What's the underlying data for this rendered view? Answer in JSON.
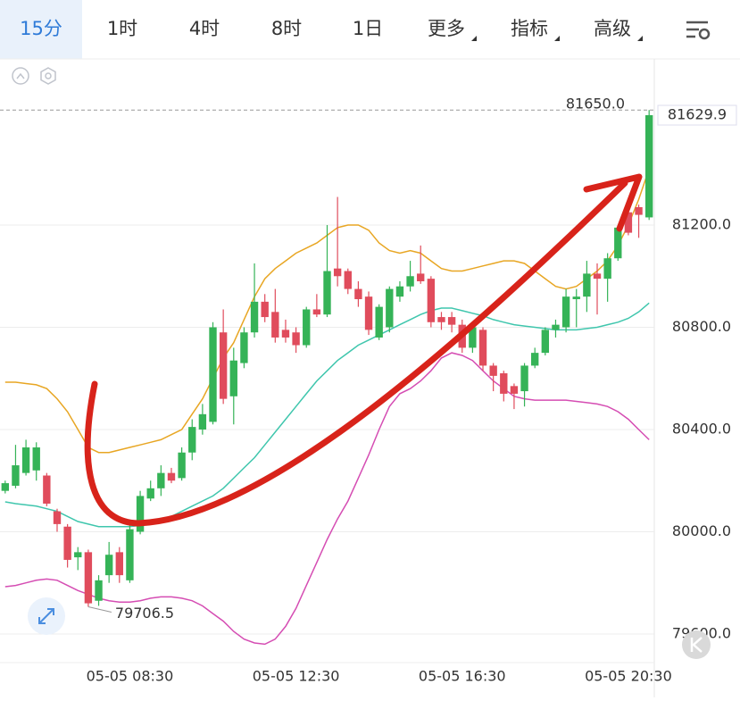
{
  "tabs": [
    "15分",
    "1时",
    "4时",
    "8时",
    "1日",
    "更多",
    "指标",
    "高级"
  ],
  "chart_data": {
    "type": "candlestick",
    "categories": [
      null,
      null,
      null,
      null,
      null,
      null,
      null,
      null,
      null,
      null,
      null,
      null,
      "05-05 08:30",
      null,
      null,
      null,
      null,
      null,
      null,
      null,
      null,
      null,
      null,
      null,
      null,
      null,
      null,
      null,
      "05-05 12:30",
      null,
      null,
      null,
      null,
      null,
      null,
      null,
      null,
      null,
      null,
      null,
      null,
      null,
      null,
      null,
      "05-05 16:30",
      null,
      null,
      null,
      null,
      null,
      null,
      null,
      null,
      null,
      null,
      null,
      null,
      null,
      null,
      null,
      "05-05 20:30",
      null,
      null
    ],
    "open": [
      80160,
      80180,
      80230,
      80240,
      80220,
      80080,
      80020,
      79900,
      79920,
      79730,
      79830,
      79920,
      79810,
      80000,
      80130,
      80170,
      80230,
      80210,
      80310,
      80400,
      80430,
      80780,
      80530,
      80660,
      80780,
      80900,
      80860,
      80790,
      80780,
      80730,
      80870,
      80850,
      81030,
      81020,
      80950,
      80920,
      80760,
      80800,
      80920,
      80960,
      81010,
      80990,
      80840,
      80840,
      80810,
      80720,
      80790,
      80650,
      80620,
      80570,
      80550,
      80650,
      80700,
      80790,
      80800,
      80910,
      80920,
      81010,
      80990,
      81070,
      81250,
      81270,
      81230
    ],
    "high": [
      80200,
      80340,
      80360,
      80350,
      80230,
      80090,
      80030,
      79940,
      79930,
      79830,
      79960,
      79940,
      80030,
      80160,
      80200,
      80260,
      80250,
      80330,
      80440,
      80500,
      80820,
      80870,
      80720,
      80800,
      81050,
      80930,
      80950,
      80830,
      80800,
      80880,
      80930,
      81200,
      81310,
      81030,
      80980,
      80940,
      80890,
      80960,
      80980,
      81060,
      81120,
      81000,
      80860,
      80860,
      80830,
      80810,
      80800,
      80660,
      80630,
      80580,
      80660,
      80720,
      80800,
      80830,
      80950,
      80950,
      81060,
      81050,
      81090,
      81200,
      81260,
      81280,
      81650
    ],
    "low": [
      80150,
      80170,
      80220,
      80200,
      80100,
      80000,
      79860,
      79850,
      79706.5,
      79710,
      79800,
      79800,
      79800,
      79990,
      80120,
      80140,
      80190,
      80200,
      80280,
      80380,
      80420,
      80500,
      80420,
      80640,
      80760,
      80820,
      80740,
      80740,
      80700,
      80720,
      80840,
      80840,
      80960,
      80930,
      80880,
      80770,
      80750,
      80780,
      80900,
      80940,
      80970,
      80800,
      80790,
      80780,
      80700,
      80700,
      80630,
      80550,
      80510,
      80480,
      80490,
      80640,
      80690,
      80760,
      80780,
      80800,
      80860,
      80850,
      80900,
      81060,
      81160,
      81150,
      81220
    ],
    "close": [
      80190,
      80260,
      80330,
      80330,
      80110,
      80030,
      79890,
      79920,
      79720,
      79810,
      79910,
      79830,
      80010,
      80140,
      80170,
      80230,
      80200,
      80310,
      80410,
      80460,
      80800,
      80520,
      80670,
      80780,
      80900,
      80840,
      80760,
      80760,
      80730,
      80870,
      80850,
      81020,
      81000,
      80950,
      80910,
      80790,
      80880,
      80950,
      80960,
      81000,
      80980,
      80820,
      80820,
      80810,
      80720,
      80800,
      80650,
      80610,
      80540,
      80540,
      80650,
      80700,
      80790,
      80810,
      80920,
      80920,
      81010,
      80990,
      81070,
      81190,
      81170,
      81240,
      81629.9
    ],
    "up_color": "#35b357",
    "down_color": "#e04c5c",
    "overlays": [
      {
        "color": "#e8a623",
        "values": [
          80585,
          80585,
          80580,
          80575,
          80560,
          80520,
          80470,
          80400,
          80330,
          80310,
          80310,
          80320,
          80330,
          80340,
          80350,
          80360,
          80380,
          80400,
          80460,
          80520,
          80600,
          80680,
          80740,
          80830,
          80920,
          80990,
          81030,
          81060,
          81090,
          81110,
          81130,
          81160,
          81190,
          81200,
          81200,
          81180,
          81130,
          81100,
          81090,
          81100,
          81090,
          81060,
          81030,
          81020,
          81020,
          81030,
          81040,
          81050,
          81060,
          81060,
          81050,
          81020,
          80990,
          80960,
          80950,
          80960,
          80990,
          81020,
          81060,
          81120,
          81200,
          81300,
          81420
        ]
      },
      {
        "color": "#3fc6ad",
        "values": [
          80117,
          80110,
          80105,
          80100,
          80090,
          80080,
          80060,
          80040,
          80030,
          80020,
          80020,
          80020,
          80020,
          80025,
          80035,
          80045,
          80060,
          80080,
          80100,
          80120,
          80140,
          80170,
          80210,
          80250,
          80290,
          80340,
          80390,
          80440,
          80490,
          80540,
          80590,
          80630,
          80670,
          80700,
          80730,
          80750,
          80770,
          80790,
          80810,
          80830,
          80850,
          80865,
          80875,
          80875,
          80865,
          80855,
          80845,
          80830,
          80820,
          80810,
          80805,
          80800,
          80795,
          80790,
          80790,
          80790,
          80795,
          80800,
          80810,
          80820,
          80835,
          80860,
          80895
        ]
      },
      {
        "color": "#d54db3",
        "values": [
          79785,
          79790,
          79800,
          79810,
          79815,
          79810,
          79790,
          79770,
          79755,
          79740,
          79730,
          79725,
          79725,
          79730,
          79740,
          79745,
          79745,
          79740,
          79730,
          79710,
          79680,
          79650,
          79610,
          79580,
          79565,
          79560,
          79580,
          79630,
          79700,
          79790,
          79880,
          79970,
          80050,
          80120,
          80210,
          80300,
          80400,
          80490,
          80540,
          80560,
          80590,
          80630,
          80680,
          80700,
          80690,
          80670,
          80630,
          80590,
          80560,
          80530,
          80520,
          80515,
          80515,
          80515,
          80515,
          80510,
          80505,
          80500,
          80490,
          80470,
          80440,
          80400,
          80360
        ]
      }
    ],
    "ylim": [
      79495,
      81843
    ],
    "yticks": [
      {
        "value": 79600,
        "label": "79600.0"
      },
      {
        "value": 80000,
        "label": "80000.0"
      },
      {
        "value": 80400,
        "label": "80400.0"
      },
      {
        "value": 80800,
        "label": "80800.0"
      },
      {
        "value": 81200,
        "label": "81200.0"
      }
    ],
    "grid": true,
    "high_marker": {
      "value": 81650,
      "label": "81650.0"
    },
    "low_marker": {
      "value": 79706.5,
      "label": "79706.5"
    },
    "last_price": {
      "value": 81629.9,
      "label": "81629.9"
    }
  }
}
